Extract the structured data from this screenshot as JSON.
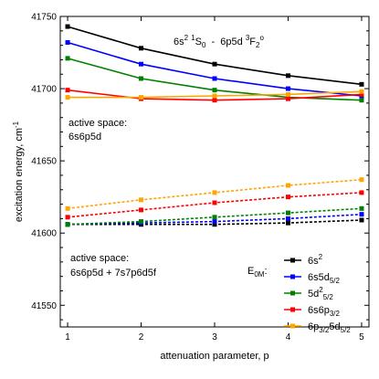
{
  "chart_data": {
    "type": "line",
    "title": "",
    "xlabel": "attenuation parameter, p",
    "ylabel": "excitation energy, cm",
    "ylabel_sup": "-1",
    "x": [
      1,
      2,
      3,
      4,
      5
    ],
    "xlim": [
      0.9,
      5.1
    ],
    "ylim": [
      41535,
      41750
    ],
    "xticks": [
      "1",
      "2",
      "3",
      "4",
      "5"
    ],
    "yticks": [
      41550,
      41600,
      41650,
      41700,
      41750
    ],
    "ytick_labels": [
      "41550",
      "41600",
      "41650",
      "41700",
      "41750"
    ],
    "grid": false,
    "transition_label": {
      "t1": "6s",
      "t1_sup": "2",
      "t2": " ",
      "t2_sup": "1",
      "t3": "S",
      "t3_sub": "0",
      "t4": "  -  6p5d ",
      "t4_sup": "3",
      "t5": "F",
      "t5_sub": "2",
      "t5_sup": "o"
    },
    "annotations": [
      {
        "line1": "active space:",
        "line2": "6s6p5d"
      },
      {
        "line1": "active space:",
        "line2": "6s6p5d + 7s7p6d5f"
      }
    ],
    "legend_title": "E",
    "legend_title_sub": "0M",
    "legend_title_suffix": ":",
    "legend_position": "lower-right",
    "series": [
      {
        "id": "6s2",
        "label": "6s",
        "label_sup": "2",
        "label_sub": "",
        "color": "#000000",
        "small": [
          41743,
          41728,
          41717,
          41709,
          41703
        ],
        "large": [
          41606,
          41606,
          41606,
          41607,
          41609
        ]
      },
      {
        "id": "6s5d",
        "label": "6s5d",
        "label_sup": "",
        "label_sub": "5/2",
        "color": "#0000ff",
        "small": [
          41732,
          41717,
          41707,
          41700,
          41695
        ],
        "large": [
          41606,
          41607,
          41608,
          41610,
          41613
        ]
      },
      {
        "id": "5d2",
        "label": "5d",
        "label_sup": "2",
        "label_sub": "5/2",
        "color": "#008000",
        "small": [
          41721,
          41707,
          41699,
          41694,
          41692
        ],
        "large": [
          41606,
          41608,
          41611,
          41614,
          41617
        ]
      },
      {
        "id": "6s6p",
        "label": "6s6p",
        "label_sup": "",
        "label_sub": "3/2",
        "color": "#ff0000",
        "small": [
          41699,
          41693,
          41692,
          41693,
          41696
        ],
        "large": [
          41611,
          41616,
          41621,
          41625,
          41628
        ]
      },
      {
        "id": "6p5d",
        "label": "6p",
        "label_sub": "3/2",
        "label2": "5d",
        "label2_sub": "5/2",
        "color": "#ffa500",
        "small": [
          41694,
          41694,
          41695,
          41696,
          41698
        ],
        "large": [
          41617,
          41623,
          41628,
          41633,
          41637
        ]
      }
    ]
  }
}
